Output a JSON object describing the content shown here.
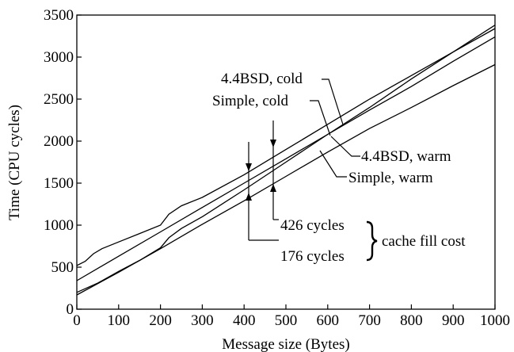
{
  "chart_data": {
    "type": "line",
    "title": "",
    "xlabel": "Message size (Bytes)",
    "ylabel": "Time (CPU cycles)",
    "xlim": [
      0,
      1000
    ],
    "ylim": [
      0,
      3500
    ],
    "xticks": [
      0,
      100,
      200,
      300,
      400,
      500,
      600,
      700,
      800,
      900,
      1000
    ],
    "yticks": [
      0,
      500,
      1000,
      1500,
      2000,
      2500,
      3000,
      3500
    ],
    "grid": false,
    "legend": "none",
    "series": [
      {
        "name": "4.4BSD, cold",
        "x": [
          0,
          20,
          40,
          60,
          100,
          150,
          200,
          220,
          250,
          300,
          400,
          500,
          600,
          700,
          800,
          900,
          1000
        ],
        "y": [
          520,
          570,
          660,
          720,
          800,
          900,
          1000,
          1130,
          1230,
          1330,
          1600,
          1900,
          2200,
          2500,
          2780,
          3060,
          3340
        ]
      },
      {
        "name": "Simple, cold",
        "x": [
          0,
          100,
          200,
          300,
          400,
          500,
          600,
          700,
          800,
          900,
          1000
        ],
        "y": [
          340,
          630,
          920,
          1210,
          1500,
          1790,
          2080,
          2370,
          2650,
          2950,
          3240
        ]
      },
      {
        "name": "4.4BSD, warm",
        "x": [
          0,
          50,
          100,
          150,
          200,
          220,
          250,
          300,
          400,
          500,
          600,
          700,
          800,
          900,
          1000
        ],
        "y": [
          200,
          310,
          450,
          580,
          730,
          850,
          960,
          1100,
          1420,
          1750,
          2080,
          2400,
          2740,
          3060,
          3380
        ]
      },
      {
        "name": "Simple, warm",
        "x": [
          0,
          100,
          200,
          300,
          400,
          500,
          600,
          700,
          800,
          900,
          1000
        ],
        "y": [
          170,
          440,
          720,
          1010,
          1290,
          1580,
          1870,
          2150,
          2400,
          2660,
          2910
        ]
      }
    ],
    "annotations": {
      "cost_426": "426 cycles",
      "cost_176": "176 cycles",
      "cache_fill": "cache fill cost"
    }
  }
}
